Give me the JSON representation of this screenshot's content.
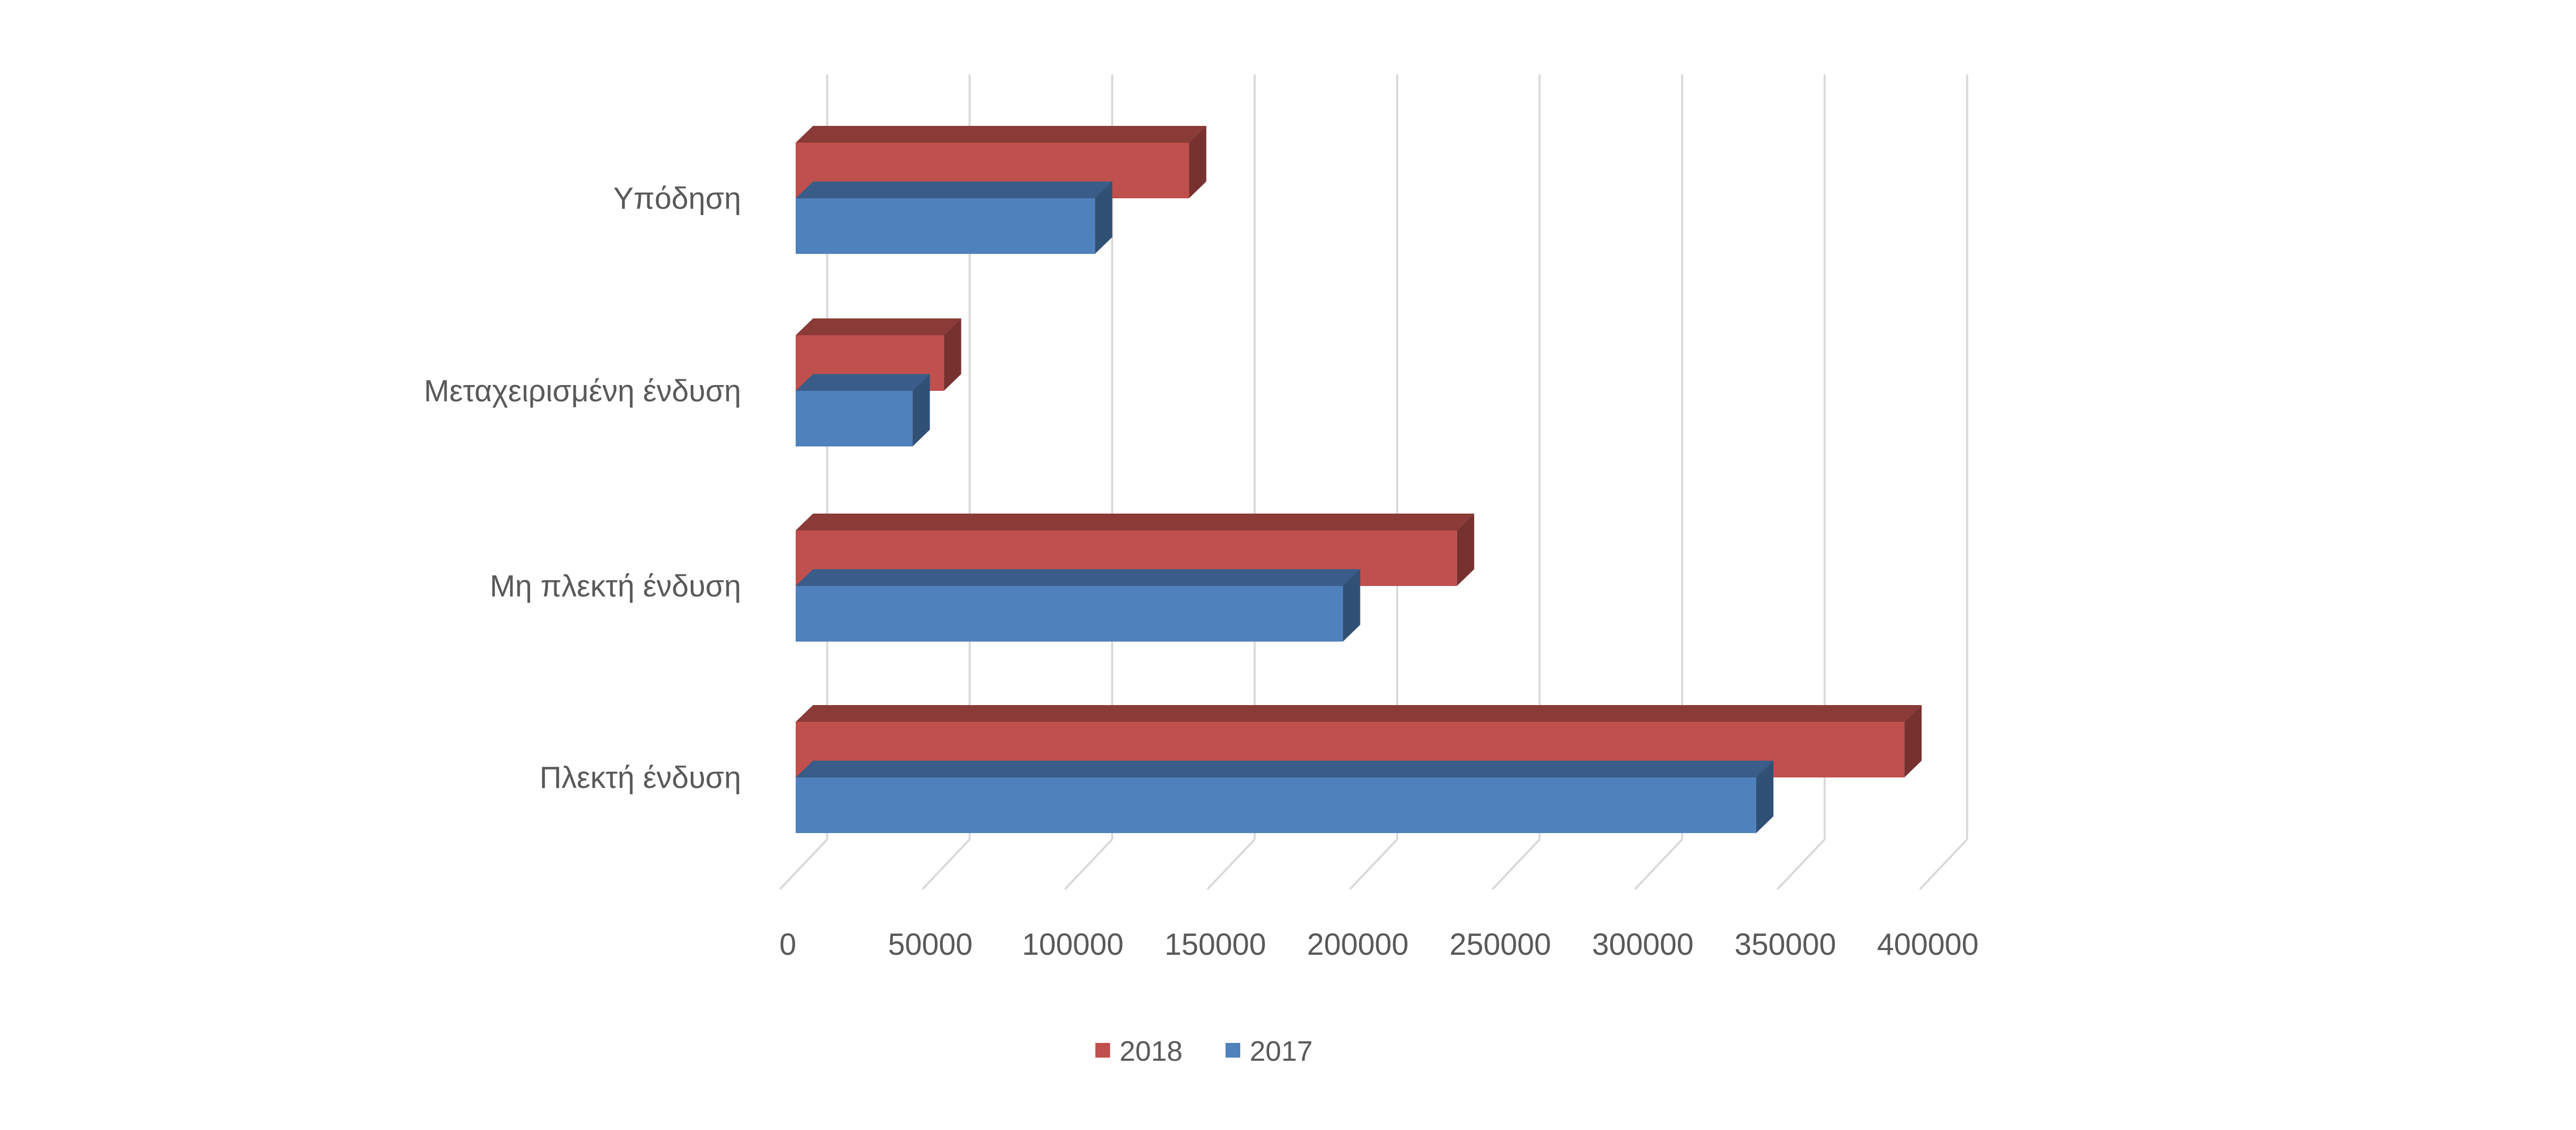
{
  "chart_data": {
    "type": "bar",
    "orientation": "horizontal",
    "style": "3d-clustered",
    "categories": [
      "Πλεκτή ένδυση",
      "Μη πλεκτή ένδυση",
      "Μεταχειρισμένη ένδυση",
      "Υπόδηση"
    ],
    "series": [
      {
        "name": "2017",
        "values": [
          337000,
          192000,
          41000,
          105000
        ],
        "color": "#4F81BD"
      },
      {
        "name": "2018",
        "values": [
          389000,
          232000,
          52000,
          138000
        ],
        "color": "#C0504D"
      }
    ],
    "xlim": [
      0,
      400000
    ],
    "ticks": [
      "0",
      "50000",
      "100000",
      "150000",
      "200000",
      "250000",
      "300000",
      "350000",
      "400000"
    ],
    "grid": true,
    "legend": {
      "position": "bottom",
      "entries": [
        {
          "label": "2018",
          "color": "#C0504D"
        },
        {
          "label": "2017",
          "color": "#4F81BD"
        }
      ]
    }
  }
}
